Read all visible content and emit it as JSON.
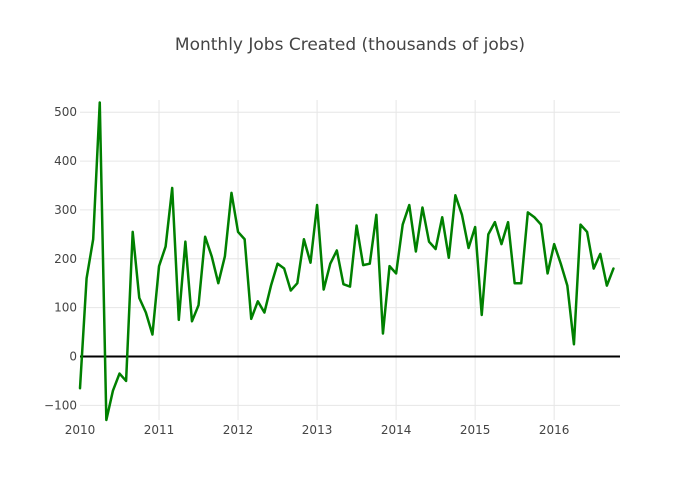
{
  "chart_data": {
    "type": "line",
    "title": "Monthly Jobs Created (thousands of jobs)",
    "xlabel": "",
    "ylabel": "",
    "grid": true,
    "legend": "none",
    "xlim": [
      2010.0,
      2016.833
    ],
    "ylim": [
      -130,
      525
    ],
    "x_ticks": [
      2010,
      2011,
      2012,
      2013,
      2014,
      2015,
      2016
    ],
    "x_tick_labels": [
      "2010",
      "2011",
      "2012",
      "2013",
      "2014",
      "2015",
      "2016"
    ],
    "y_ticks": [
      -100,
      0,
      100,
      200,
      300,
      400,
      500
    ],
    "y_tick_labels": [
      "−100",
      "0",
      "100",
      "200",
      "300",
      "400",
      "500"
    ],
    "zero_line": true,
    "series": [
      {
        "name": "Jobs created",
        "color": "#008000",
        "start_year": 2010,
        "start_month": 1,
        "values": [
          -65,
          160,
          240,
          520,
          -130,
          -70,
          -35,
          -50,
          255,
          120,
          90,
          45,
          185,
          225,
          345,
          75,
          235,
          72,
          105,
          245,
          205,
          150,
          205,
          335,
          255,
          240,
          77,
          113,
          90,
          145,
          190,
          180,
          135,
          150,
          240,
          192,
          310,
          137,
          190,
          217,
          148,
          143,
          268,
          187,
          190,
          290,
          47,
          185,
          170,
          270,
          310,
          215,
          305,
          235,
          220,
          285,
          202,
          330,
          290,
          222,
          265,
          85,
          250,
          275,
          230,
          275,
          150,
          150,
          295,
          285,
          270,
          170,
          230,
          190,
          145,
          25,
          270,
          255,
          180,
          210,
          145,
          180
        ]
      }
    ]
  }
}
